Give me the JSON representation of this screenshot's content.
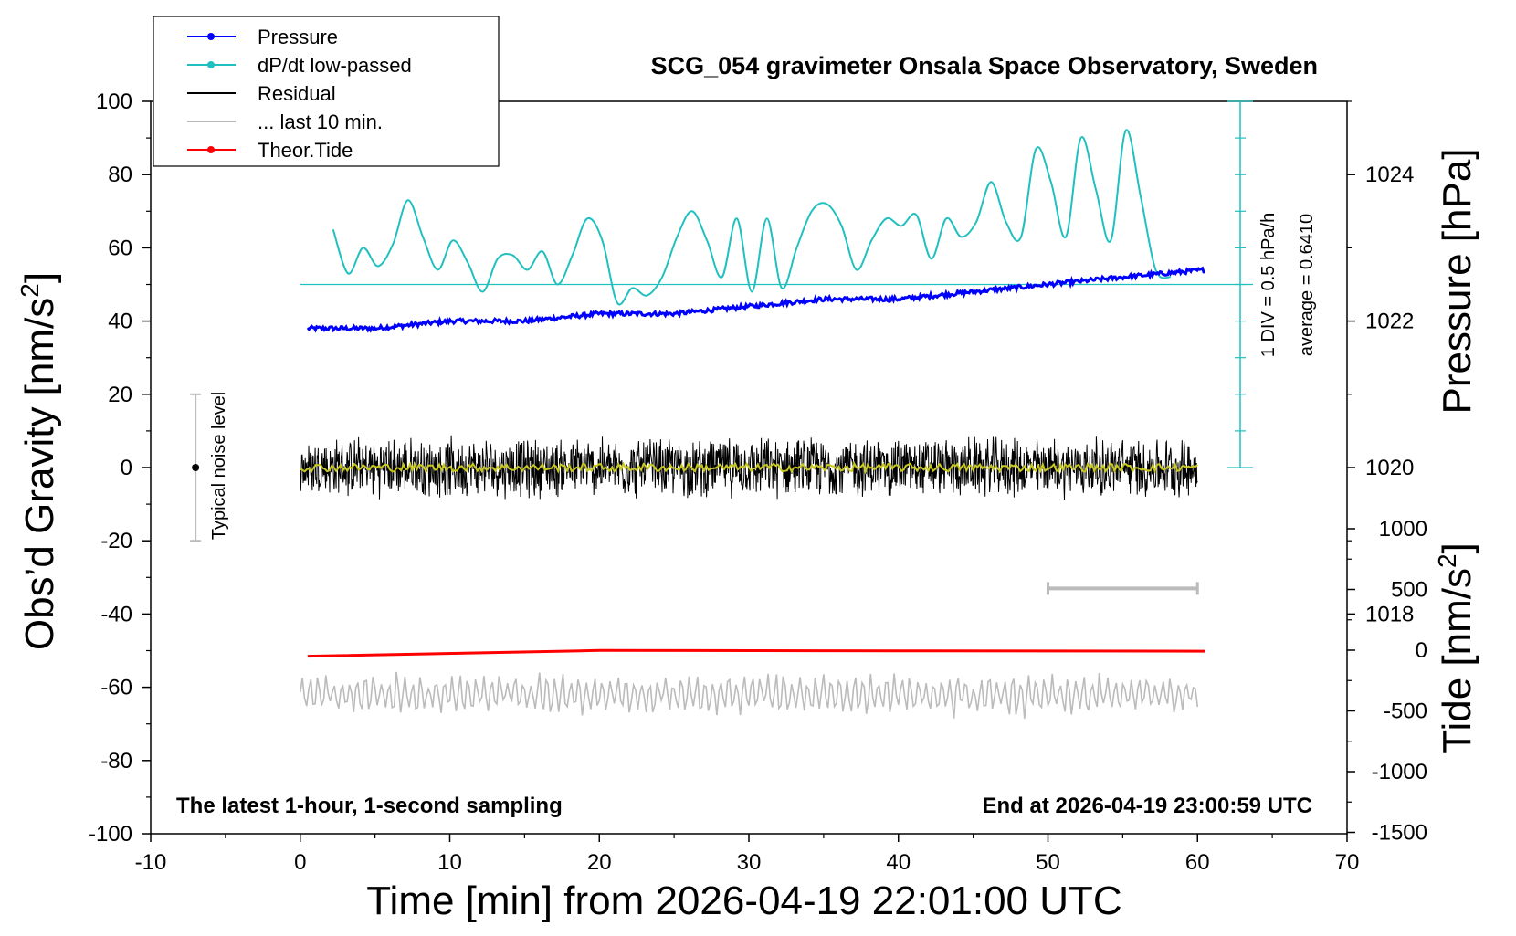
{
  "chart_data": {
    "type": "line",
    "title": "SCG_054 gravimeter Onsala Space Observatory, Sweden",
    "xlabel": "Time [min] from 2026-04-19 22:01:00 UTC",
    "ylabel_left": "Obs'd Gravity [nm/s²]",
    "ylabel_right_top": "Pressure [hPa]",
    "ylabel_right_bottom": "Tide [nm/s²]",
    "xlim": [
      -10,
      70
    ],
    "ylim_left": [
      -100,
      100
    ],
    "ylim_pressure": [
      1015,
      1025
    ],
    "ylim_tide": [
      -1500,
      1500
    ],
    "grid": false,
    "legend_position": "top-left",
    "x_ticks": [
      "-10",
      "0",
      "10",
      "20",
      "30",
      "40",
      "50",
      "60",
      "70"
    ],
    "y_ticks_left": [
      "100",
      "80",
      "60",
      "40",
      "20",
      "0",
      "-20",
      "-40",
      "-60",
      "-80",
      "-100"
    ],
    "y_ticks_pressure": [
      "1024",
      "1022",
      "1020",
      "1018"
    ],
    "y_ticks_tide": [
      "1000",
      "500",
      "0",
      "-500",
      "-1000",
      "-1500"
    ],
    "annotations": {
      "left_note": "The latest 1-hour, 1-second sampling",
      "right_note": "End at 2026-04-19 23:00:59 UTC",
      "noise": "Typical noise level",
      "div": "1 DIV = 0.5 hPa/h",
      "average": "average = 0.6410"
    },
    "legend": [
      {
        "label": "Pressure",
        "color": "#0000ff",
        "marker": true
      },
      {
        "label": "dP/dt low-passed",
        "color": "#20c0c0",
        "marker": true
      },
      {
        "label": "Residual",
        "color": "#000000",
        "marker": false
      },
      {
        "label": "... last 10 min.",
        "color": "#bbbbbb",
        "marker": false
      },
      {
        "label": "Theor.Tide",
        "color": "#ff0000",
        "marker": true
      }
    ],
    "colors": {
      "pressure": "#0000ff",
      "dpdt": "#20c0c0",
      "residual": "#000000",
      "residual_smooth": "#c8c820",
      "last10": "#bbbbbb",
      "tide": "#ff0000"
    },
    "series": {
      "pressure": {
        "x": [
          0.5,
          5,
          10,
          15,
          20,
          25,
          30,
          35,
          40,
          45,
          50,
          55,
          60.5
        ],
        "y": [
          1021.9,
          1021.9,
          1022.0,
          1022.0,
          1022.1,
          1022.1,
          1022.2,
          1022.3,
          1022.3,
          1022.4,
          1022.5,
          1022.6,
          1022.7
        ]
      },
      "dpdt_low_passed": {
        "x": [
          2.2,
          3.2,
          4.2,
          5.2,
          6.2,
          7.2,
          8.2,
          9.2,
          10.2,
          11.2,
          12.2,
          13.2,
          14.2,
          15.2,
          16.2,
          17.2,
          18.2,
          19.2,
          20.2,
          21.2,
          22.2,
          23.2,
          24.2,
          25.2,
          26.2,
          27.2,
          28.2,
          29.2,
          30.2,
          31.2,
          32.2,
          33.2,
          34.2,
          35.2,
          36.2,
          37.2,
          38.2,
          39.2,
          40.2,
          41.2,
          42.2,
          43.2,
          44.2,
          45.2,
          46.2,
          47.2,
          48.2,
          49.2,
          50.2,
          51.2,
          52.2,
          53.2,
          54.2,
          55.2,
          56.2,
          57.2,
          58.2
        ],
        "y": [
          65,
          53,
          60,
          55,
          61,
          73,
          63,
          54,
          62,
          56,
          48,
          57,
          58,
          54,
          59,
          50,
          58,
          68,
          62,
          45,
          49,
          47,
          52,
          63,
          70,
          62,
          52,
          68,
          48,
          68,
          49,
          60,
          70,
          72,
          66,
          54,
          62,
          68,
          66,
          69,
          57,
          68,
          63,
          67,
          78,
          67,
          63,
          87,
          78,
          63,
          90,
          76,
          62,
          92,
          74,
          54,
          52
        ]
      },
      "residual": {
        "x_range": [
          0,
          60
        ],
        "baseline": 0,
        "amplitude": 9
      },
      "last_10_min": {
        "x_range": [
          0,
          60
        ],
        "baseline": -62,
        "amplitude": 6
      },
      "theor_tide": {
        "x": [
          0.5,
          20,
          40,
          60.5
        ],
        "y": [
          -50,
          -2,
          -5,
          -8
        ]
      },
      "noise_bar": {
        "x": -7,
        "y_center": 0,
        "y_low": -20,
        "y_high": 20
      },
      "last10_marker": {
        "x_range": [
          50,
          60
        ]
      }
    }
  }
}
